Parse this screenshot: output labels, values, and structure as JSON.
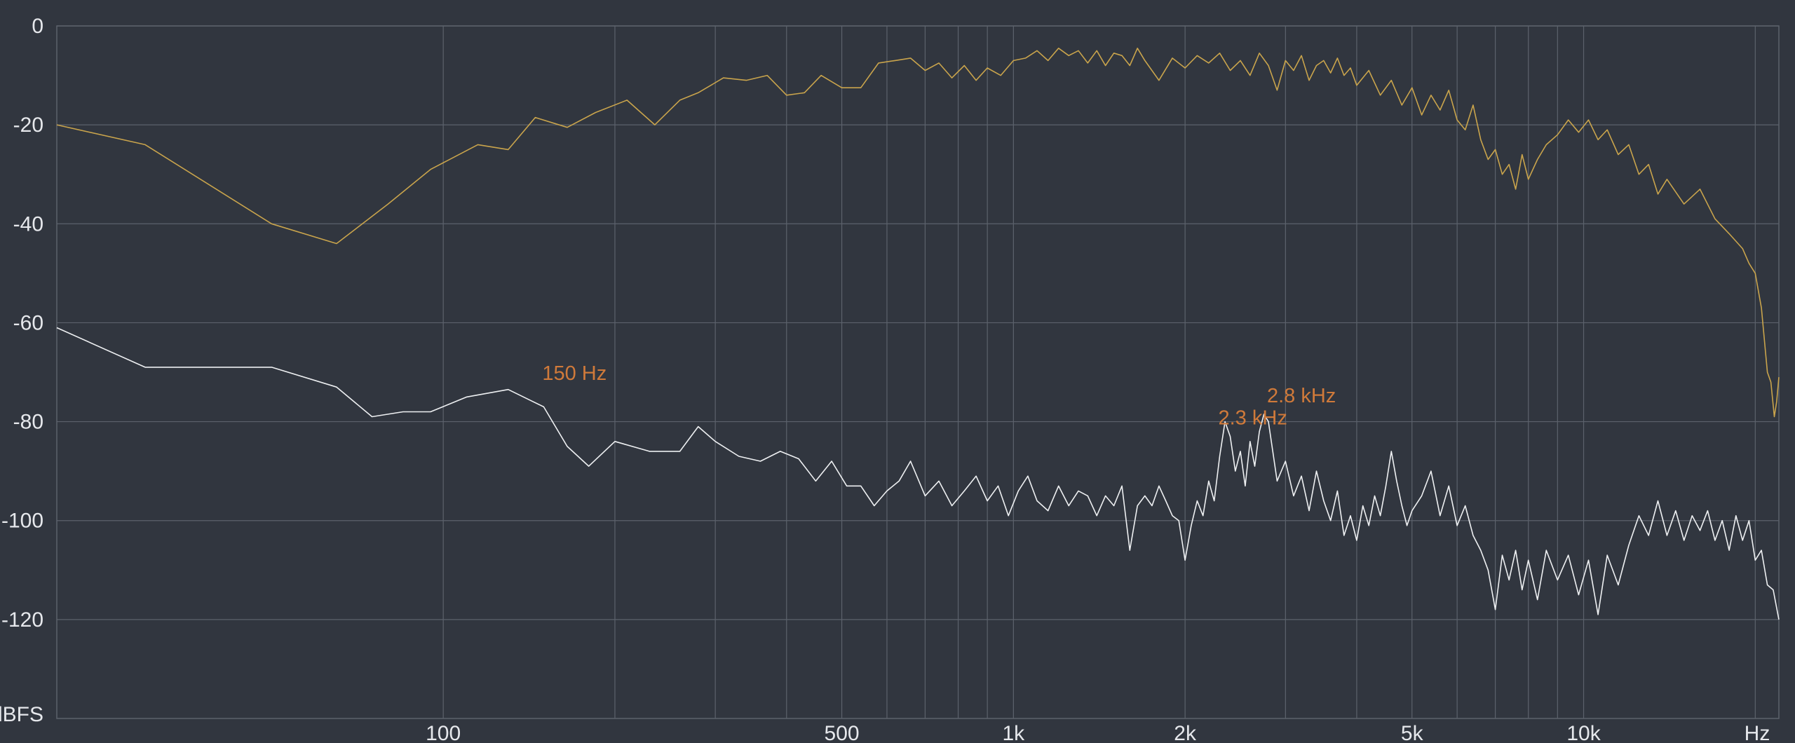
{
  "chart_data": {
    "type": "line",
    "title": "",
    "xlabel": "Hz",
    "ylabel": "dBFS",
    "x_scale": "log",
    "xlim": [
      21,
      22000
    ],
    "ylim": [
      -140,
      0
    ],
    "grid": true,
    "y_ticks": [
      {
        "value": 0,
        "label": "0"
      },
      {
        "value": -20,
        "label": "-20"
      },
      {
        "value": -40,
        "label": "-40"
      },
      {
        "value": -60,
        "label": "-60"
      },
      {
        "value": -80,
        "label": "-80"
      },
      {
        "value": -100,
        "label": "-100"
      },
      {
        "value": -120,
        "label": "-120"
      }
    ],
    "x_tick_labels": [
      {
        "value": 100,
        "label": "100"
      },
      {
        "value": 500,
        "label": "500"
      },
      {
        "value": 1000,
        "label": "1k"
      },
      {
        "value": 2000,
        "label": "2k"
      },
      {
        "value": 5000,
        "label": "5k"
      },
      {
        "value": 10000,
        "label": "10k"
      }
    ],
    "x_unit_label": "Hz",
    "y_unit_label": "dBFS",
    "x_gridlines": [
      100,
      200,
      300,
      400,
      500,
      600,
      700,
      800,
      900,
      1000,
      2000,
      3000,
      4000,
      5000,
      6000,
      7000,
      8000,
      9000,
      10000,
      20000
    ],
    "series": [
      {
        "color": "#c9a44c",
        "points": [
          [
            21,
            -20
          ],
          [
            30,
            -24
          ],
          [
            50,
            -40
          ],
          [
            65,
            -44
          ],
          [
            80,
            -36
          ],
          [
            95,
            -29
          ],
          [
            115,
            -24
          ],
          [
            130,
            -25
          ],
          [
            145,
            -18.5
          ],
          [
            165,
            -20.5
          ],
          [
            185,
            -17.5
          ],
          [
            210,
            -15
          ],
          [
            235,
            -20
          ],
          [
            260,
            -15
          ],
          [
            280,
            -13.5
          ],
          [
            310,
            -10.5
          ],
          [
            340,
            -11
          ],
          [
            370,
            -10
          ],
          [
            400,
            -14
          ],
          [
            430,
            -13.5
          ],
          [
            460,
            -10
          ],
          [
            500,
            -12.5
          ],
          [
            540,
            -12.5
          ],
          [
            580,
            -7.5
          ],
          [
            620,
            -7
          ],
          [
            660,
            -6.5
          ],
          [
            700,
            -9
          ],
          [
            740,
            -7.5
          ],
          [
            780,
            -10.5
          ],
          [
            820,
            -8
          ],
          [
            860,
            -11
          ],
          [
            900,
            -8.5
          ],
          [
            950,
            -10
          ],
          [
            1000,
            -7
          ],
          [
            1050,
            -6.5
          ],
          [
            1100,
            -5
          ],
          [
            1150,
            -7
          ],
          [
            1200,
            -4.5
          ],
          [
            1250,
            -6
          ],
          [
            1300,
            -5
          ],
          [
            1350,
            -7.5
          ],
          [
            1400,
            -5
          ],
          [
            1450,
            -8
          ],
          [
            1500,
            -5.5
          ],
          [
            1550,
            -6
          ],
          [
            1600,
            -8
          ],
          [
            1650,
            -4.5
          ],
          [
            1700,
            -7
          ],
          [
            1800,
            -11
          ],
          [
            1900,
            -6.5
          ],
          [
            2000,
            -8.5
          ],
          [
            2100,
            -6
          ],
          [
            2200,
            -7.5
          ],
          [
            2300,
            -5.5
          ],
          [
            2400,
            -9
          ],
          [
            2500,
            -7
          ],
          [
            2600,
            -10
          ],
          [
            2700,
            -5.5
          ],
          [
            2800,
            -8
          ],
          [
            2900,
            -13
          ],
          [
            3000,
            -7
          ],
          [
            3100,
            -9
          ],
          [
            3200,
            -6
          ],
          [
            3300,
            -11
          ],
          [
            3400,
            -8
          ],
          [
            3500,
            -7
          ],
          [
            3600,
            -9.5
          ],
          [
            3700,
            -6.5
          ],
          [
            3800,
            -10
          ],
          [
            3900,
            -8.5
          ],
          [
            4000,
            -12
          ],
          [
            4200,
            -9
          ],
          [
            4400,
            -14
          ],
          [
            4600,
            -11
          ],
          [
            4800,
            -16
          ],
          [
            5000,
            -12.5
          ],
          [
            5200,
            -18
          ],
          [
            5400,
            -14
          ],
          [
            5600,
            -17
          ],
          [
            5800,
            -13
          ],
          [
            6000,
            -19
          ],
          [
            6200,
            -21
          ],
          [
            6400,
            -16
          ],
          [
            6600,
            -23
          ],
          [
            6800,
            -27
          ],
          [
            7000,
            -25
          ],
          [
            7200,
            -30
          ],
          [
            7400,
            -28
          ],
          [
            7600,
            -33
          ],
          [
            7800,
            -26
          ],
          [
            8000,
            -31
          ],
          [
            8300,
            -27
          ],
          [
            8600,
            -24
          ],
          [
            9000,
            -22
          ],
          [
            9400,
            -19
          ],
          [
            9800,
            -21.5
          ],
          [
            10200,
            -19
          ],
          [
            10600,
            -23
          ],
          [
            11000,
            -21
          ],
          [
            11500,
            -26
          ],
          [
            12000,
            -24
          ],
          [
            12500,
            -30
          ],
          [
            13000,
            -28
          ],
          [
            13500,
            -34
          ],
          [
            14000,
            -31
          ],
          [
            15000,
            -36
          ],
          [
            16000,
            -33
          ],
          [
            17000,
            -39
          ],
          [
            18000,
            -42
          ],
          [
            19000,
            -45
          ],
          [
            19500,
            -48
          ],
          [
            20000,
            -50
          ],
          [
            20500,
            -57
          ],
          [
            21000,
            -70
          ],
          [
            21300,
            -72
          ],
          [
            21600,
            -79
          ],
          [
            21800,
            -76
          ],
          [
            22000,
            -71
          ]
        ]
      },
      {
        "color": "#eef0f2",
        "points": [
          [
            21,
            -61
          ],
          [
            30,
            -69
          ],
          [
            40,
            -69
          ],
          [
            50,
            -69
          ],
          [
            65,
            -73
          ],
          [
            75,
            -79
          ],
          [
            85,
            -78
          ],
          [
            95,
            -78
          ],
          [
            110,
            -75
          ],
          [
            130,
            -73.5
          ],
          [
            150,
            -77
          ],
          [
            165,
            -85
          ],
          [
            180,
            -89
          ],
          [
            200,
            -84
          ],
          [
            230,
            -86
          ],
          [
            260,
            -86
          ],
          [
            280,
            -81
          ],
          [
            300,
            -84
          ],
          [
            330,
            -87
          ],
          [
            360,
            -88
          ],
          [
            390,
            -86
          ],
          [
            420,
            -87.5
          ],
          [
            450,
            -92
          ],
          [
            480,
            -88
          ],
          [
            510,
            -93
          ],
          [
            540,
            -93
          ],
          [
            570,
            -97
          ],
          [
            600,
            -94
          ],
          [
            630,
            -92
          ],
          [
            660,
            -88
          ],
          [
            700,
            -95
          ],
          [
            740,
            -92
          ],
          [
            780,
            -97
          ],
          [
            820,
            -94
          ],
          [
            860,
            -91
          ],
          [
            900,
            -96
          ],
          [
            940,
            -93
          ],
          [
            980,
            -99
          ],
          [
            1020,
            -94
          ],
          [
            1060,
            -91
          ],
          [
            1100,
            -96
          ],
          [
            1150,
            -98
          ],
          [
            1200,
            -93
          ],
          [
            1250,
            -97
          ],
          [
            1300,
            -94
          ],
          [
            1350,
            -95
          ],
          [
            1400,
            -99
          ],
          [
            1450,
            -95
          ],
          [
            1500,
            -97
          ],
          [
            1550,
            -93
          ],
          [
            1600,
            -106
          ],
          [
            1650,
            -97
          ],
          [
            1700,
            -95
          ],
          [
            1750,
            -97
          ],
          [
            1800,
            -93
          ],
          [
            1850,
            -96
          ],
          [
            1900,
            -99
          ],
          [
            1950,
            -100
          ],
          [
            2000,
            -108
          ],
          [
            2050,
            -101
          ],
          [
            2100,
            -96
          ],
          [
            2150,
            -99
          ],
          [
            2200,
            -92
          ],
          [
            2250,
            -96
          ],
          [
            2300,
            -87
          ],
          [
            2350,
            -80
          ],
          [
            2400,
            -83
          ],
          [
            2450,
            -90
          ],
          [
            2500,
            -86
          ],
          [
            2550,
            -93
          ],
          [
            2600,
            -84
          ],
          [
            2650,
            -89
          ],
          [
            2700,
            -82
          ],
          [
            2750,
            -78.5
          ],
          [
            2800,
            -80
          ],
          [
            2850,
            -86
          ],
          [
            2900,
            -92
          ],
          [
            3000,
            -88
          ],
          [
            3100,
            -95
          ],
          [
            3200,
            -91
          ],
          [
            3300,
            -98
          ],
          [
            3400,
            -90
          ],
          [
            3500,
            -96
          ],
          [
            3600,
            -100
          ],
          [
            3700,
            -94
          ],
          [
            3800,
            -103
          ],
          [
            3900,
            -99
          ],
          [
            4000,
            -104
          ],
          [
            4100,
            -97
          ],
          [
            4200,
            -101
          ],
          [
            4300,
            -95
          ],
          [
            4400,
            -99
          ],
          [
            4500,
            -93
          ],
          [
            4600,
            -86
          ],
          [
            4700,
            -92
          ],
          [
            4800,
            -97
          ],
          [
            4900,
            -101
          ],
          [
            5000,
            -98
          ],
          [
            5200,
            -95
          ],
          [
            5400,
            -90
          ],
          [
            5600,
            -99
          ],
          [
            5800,
            -93
          ],
          [
            6000,
            -101
          ],
          [
            6200,
            -97
          ],
          [
            6400,
            -103
          ],
          [
            6600,
            -106
          ],
          [
            6800,
            -110
          ],
          [
            7000,
            -118
          ],
          [
            7200,
            -107
          ],
          [
            7400,
            -112
          ],
          [
            7600,
            -106
          ],
          [
            7800,
            -114
          ],
          [
            8000,
            -108
          ],
          [
            8300,
            -116
          ],
          [
            8600,
            -106
          ],
          [
            9000,
            -112
          ],
          [
            9400,
            -107
          ],
          [
            9800,
            -115
          ],
          [
            10200,
            -108
          ],
          [
            10600,
            -119
          ],
          [
            11000,
            -107
          ],
          [
            11500,
            -113
          ],
          [
            12000,
            -105
          ],
          [
            12500,
            -99
          ],
          [
            13000,
            -103
          ],
          [
            13500,
            -96
          ],
          [
            14000,
            -103
          ],
          [
            14500,
            -98
          ],
          [
            15000,
            -104
          ],
          [
            15500,
            -99
          ],
          [
            16000,
            -102
          ],
          [
            16500,
            -98
          ],
          [
            17000,
            -104
          ],
          [
            17500,
            -100
          ],
          [
            18000,
            -106
          ],
          [
            18500,
            -99
          ],
          [
            19000,
            -104
          ],
          [
            19500,
            -100
          ],
          [
            20000,
            -108
          ],
          [
            20500,
            -106
          ],
          [
            21000,
            -113
          ],
          [
            21500,
            -114
          ],
          [
            22000,
            -120
          ]
        ]
      }
    ],
    "annotations": [
      {
        "text": "150 Hz",
        "x": 150,
        "y": -73,
        "color": "#d07a3a"
      },
      {
        "text": "2.8  kHz",
        "x": 2800,
        "y": -77.5,
        "color": "#d07a3a"
      },
      {
        "text": "2.3  kHz",
        "x": 2300,
        "y": -82,
        "color": "#d07a3a"
      }
    ]
  }
}
